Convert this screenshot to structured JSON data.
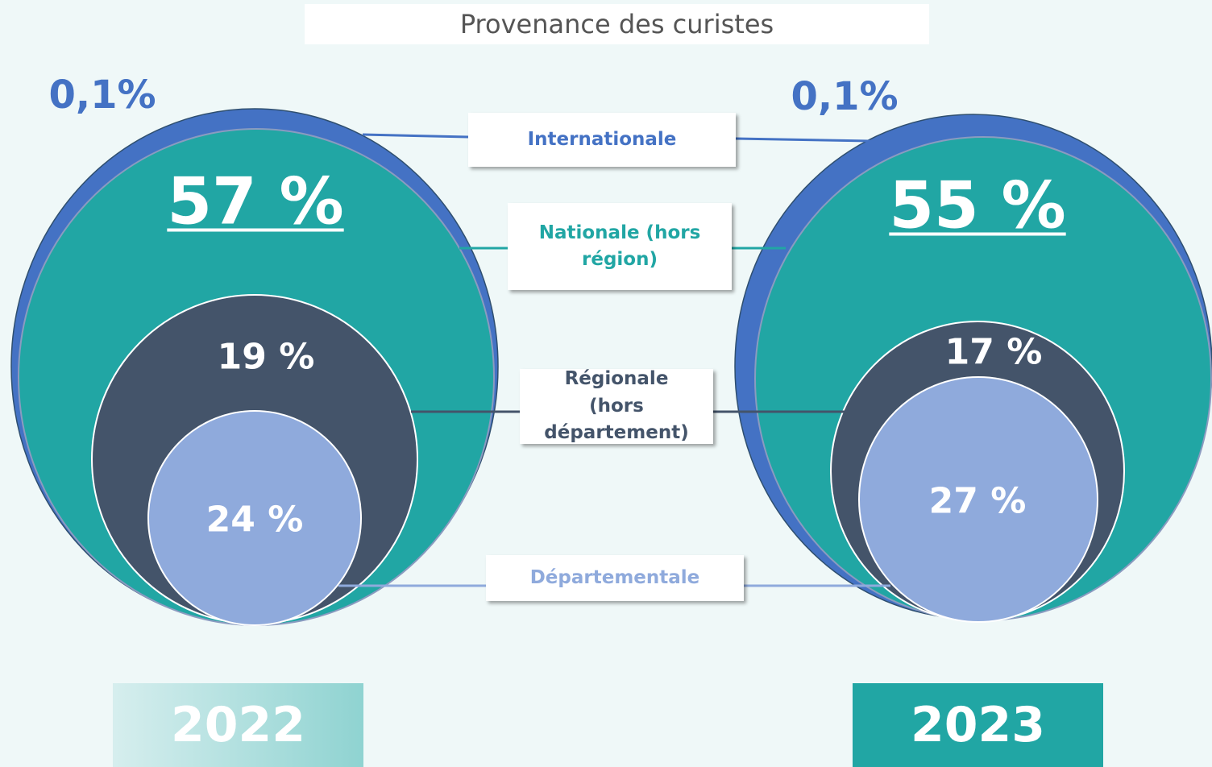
{
  "chart_data": {
    "type": "nested_circles",
    "title": "Provenance des curistes",
    "categories": [
      "Internationale",
      "Nationale (hors région)",
      "Régionale (hors département)",
      "Départementale"
    ],
    "colors": [
      "#4472c4",
      "#21a6a4",
      "#44546a",
      "#8faadc"
    ],
    "series": [
      {
        "name": "2022",
        "values": [
          0.1,
          57,
          19,
          24
        ],
        "value_labels": [
          "0,1%",
          "57 %",
          "19 %",
          "24 %"
        ]
      },
      {
        "name": "2023",
        "values": [
          0.1,
          55,
          17,
          27
        ],
        "value_labels": [
          "0,1%",
          "55 %",
          "17 %",
          "27 %"
        ]
      }
    ]
  }
}
